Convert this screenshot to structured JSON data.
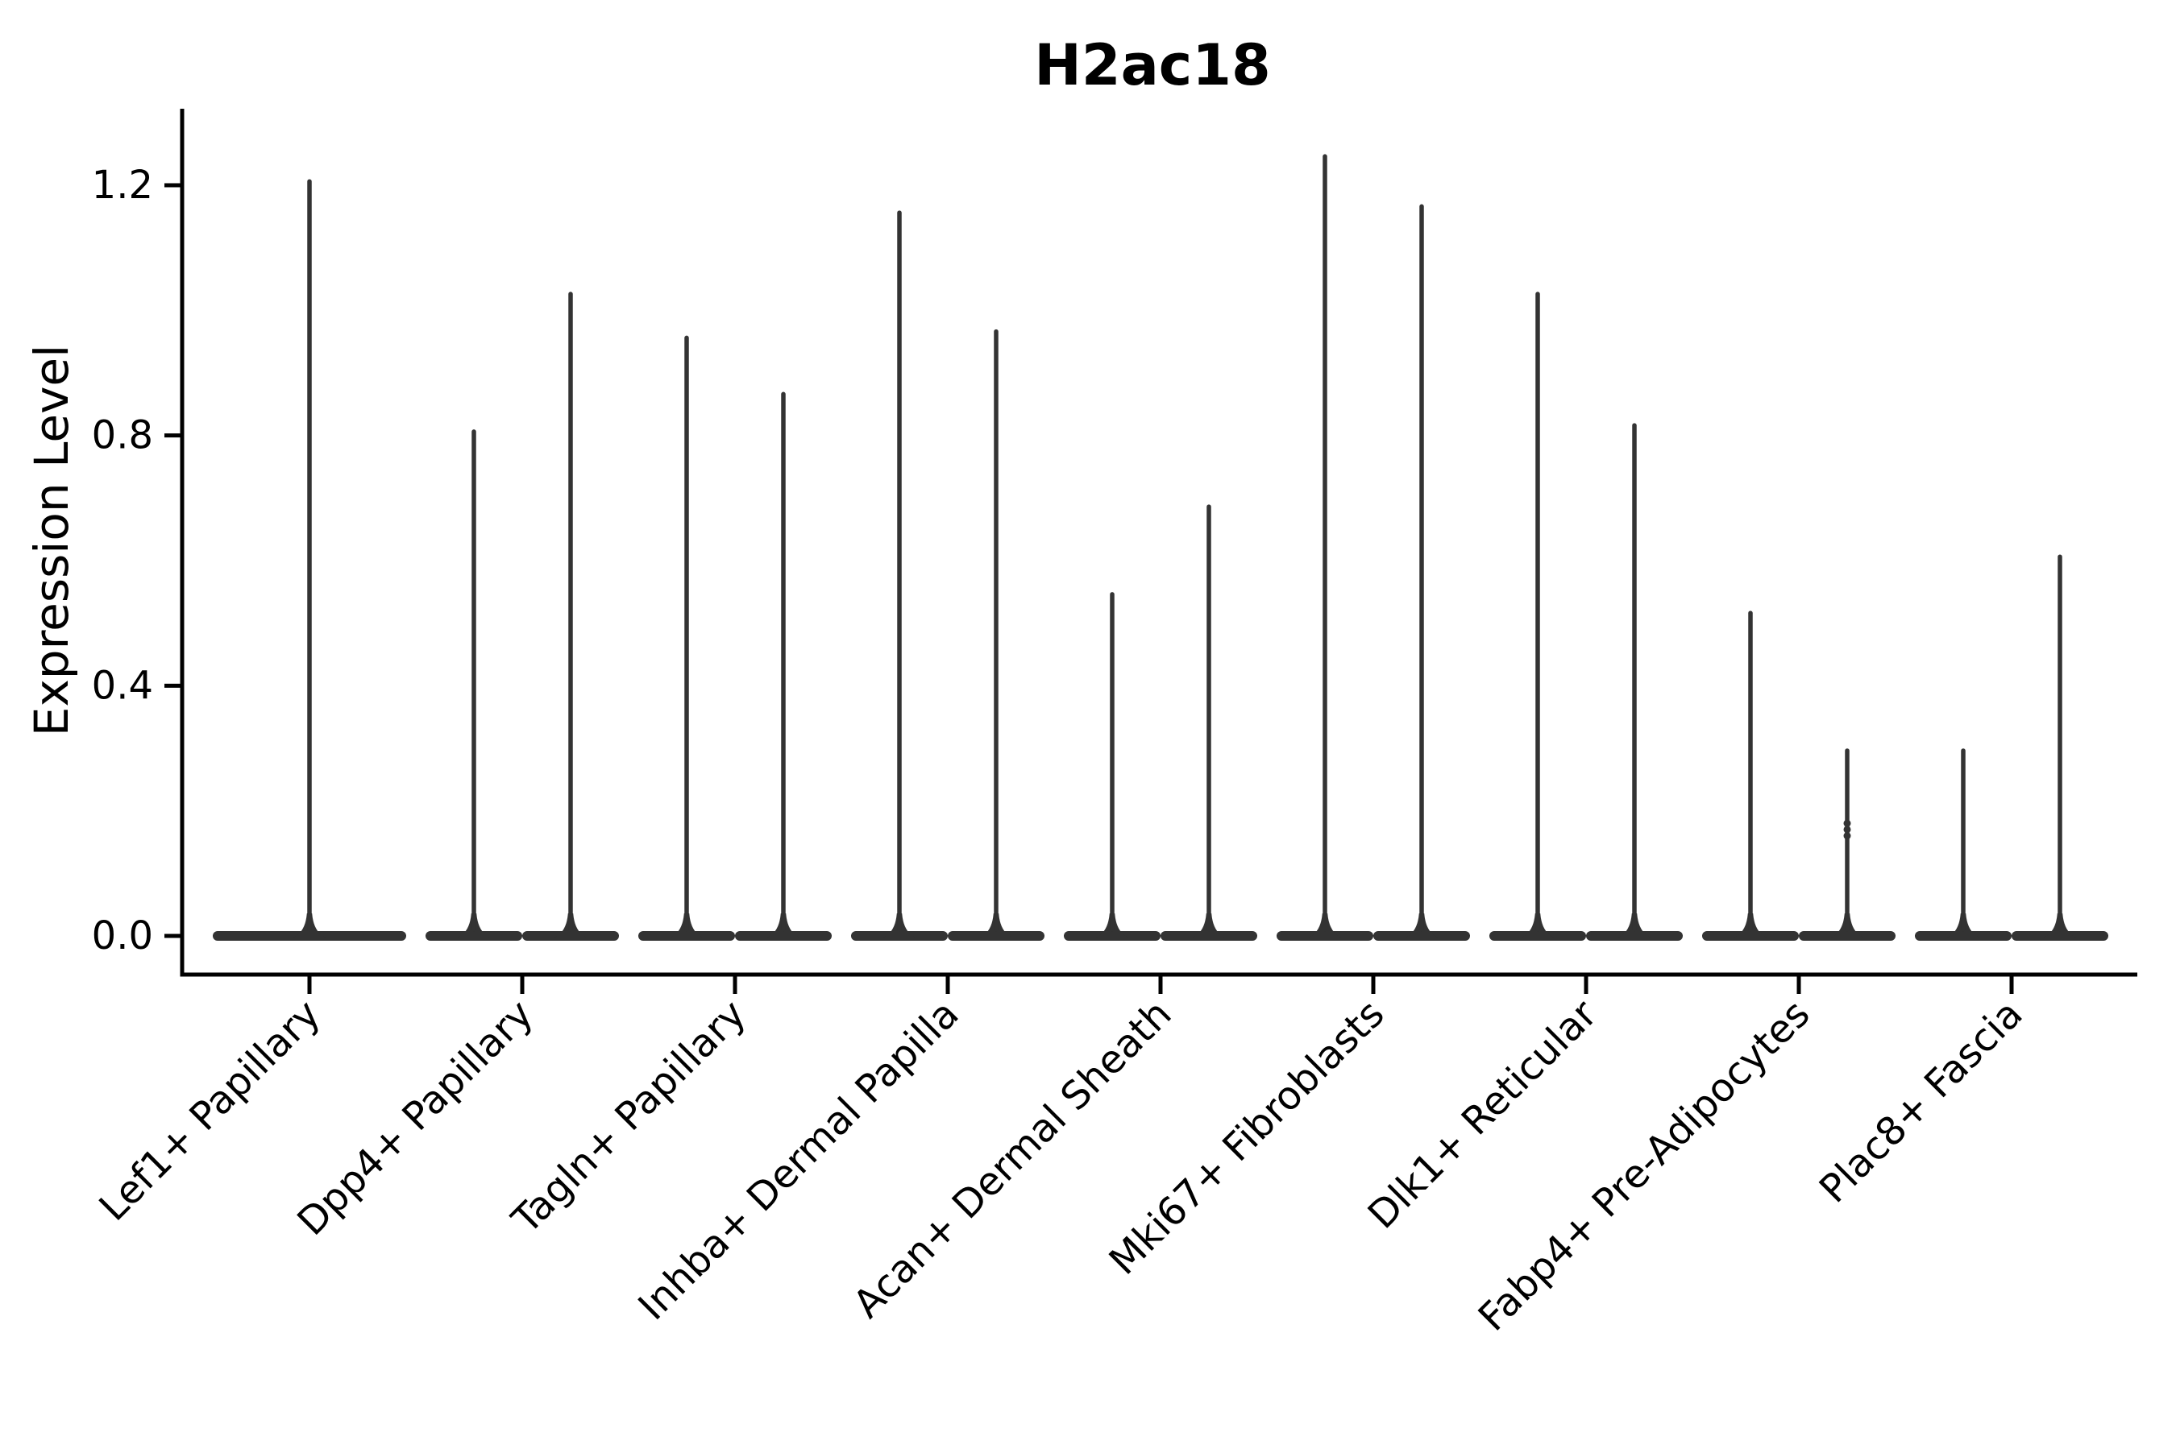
{
  "chart_data": {
    "type": "violin",
    "title": "H2ac18",
    "ylabel": "Expression Level",
    "xlabel": "",
    "ylim": [
      -0.06,
      1.32
    ],
    "yticks": [
      0,
      0.4,
      0.8,
      1.2
    ],
    "ytick_labels": [
      "0.0",
      "0.4",
      "0.8",
      "1.2"
    ],
    "grid": false,
    "legend_position": "none",
    "violin_color": "#333333",
    "axis_color": "#000000",
    "background_color": "#ffffff",
    "categories": [
      "Lef1+ Papillary",
      "Dpp4+ Papillary",
      "Tagln+ Papillary",
      "Inhba+ Dermal Papilla",
      "Acan+ Dermal Sheath",
      "Mki67+ Fibroblasts",
      "Dlk1+ Reticular",
      "Fabp4+ Pre-Adipocytes",
      "Plac8+ Fascia"
    ],
    "groups": [
      {
        "category": "Lef1+ Papillary",
        "violins": [
          {
            "max": 1.21,
            "span": "full"
          }
        ]
      },
      {
        "category": "Dpp4+ Papillary",
        "violins": [
          {
            "max": 0.81
          },
          {
            "max": 1.03
          }
        ]
      },
      {
        "category": "Tagln+ Papillary",
        "violins": [
          {
            "max": 0.96
          },
          {
            "max": 0.87
          }
        ]
      },
      {
        "category": "Inhba+ Dermal Papilla",
        "violins": [
          {
            "max": 1.16
          },
          {
            "max": 0.97
          }
        ]
      },
      {
        "category": "Acan+ Dermal Sheath",
        "violins": [
          {
            "max": 0.55
          },
          {
            "max": 0.69
          }
        ]
      },
      {
        "category": "Mki67+ Fibroblasts",
        "violins": [
          {
            "max": 1.25
          },
          {
            "max": 1.17
          }
        ]
      },
      {
        "category": "Dlk1+ Reticular",
        "violins": [
          {
            "max": 1.03
          },
          {
            "max": 0.82
          }
        ]
      },
      {
        "category": "Fabp4+ Pre-Adipocytes",
        "violins": [
          {
            "max": 0.52
          },
          {
            "max": 0.3,
            "bumps": [
              0.16,
              0.17,
              0.18
            ]
          }
        ]
      },
      {
        "category": "Plac8+ Fascia",
        "violins": [
          {
            "max": 0.3
          },
          {
            "max": 0.61
          }
        ]
      }
    ]
  }
}
